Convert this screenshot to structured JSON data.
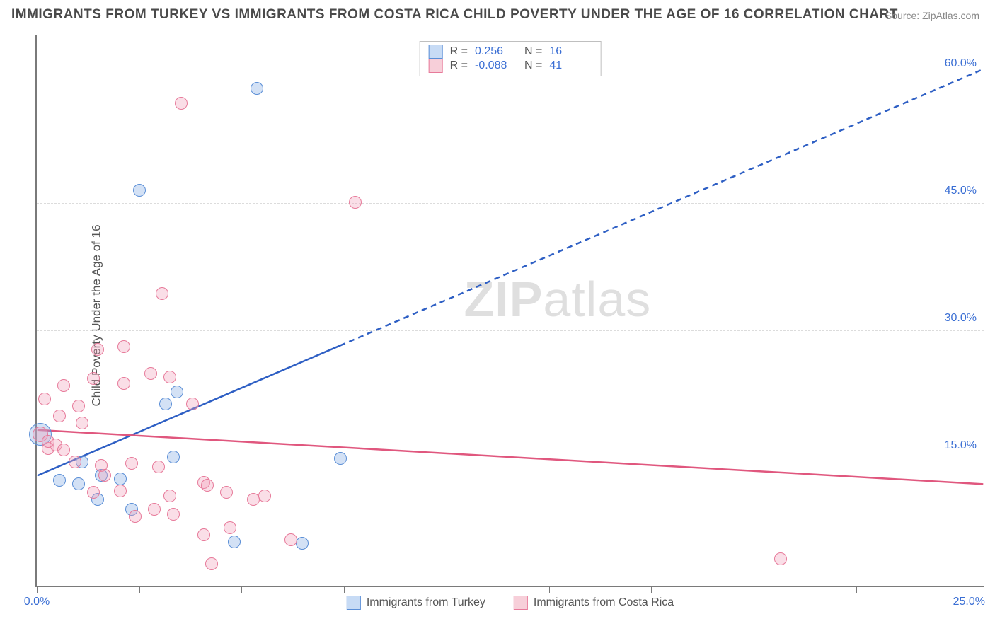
{
  "title": "IMMIGRANTS FROM TURKEY VS IMMIGRANTS FROM COSTA RICA CHILD POVERTY UNDER THE AGE OF 16 CORRELATION CHART",
  "source": "Source: ZipAtlas.com",
  "watermark_a": "ZIP",
  "watermark_b": "atlas",
  "chart": {
    "type": "scatter",
    "background_color": "#ffffff",
    "grid_color": "#dcdcdc",
    "axis_color": "#7a7a7a",
    "label_color": "#3b6fd4",
    "y_label": "Child Poverty Under the Age of 16",
    "y_label_fontsize": 17,
    "tick_fontsize": 16,
    "title_fontsize": 19,
    "xlim": [
      0,
      25
    ],
    "ylim": [
      0,
      65
    ],
    "x_ticks": [
      0,
      2.7,
      5.4,
      8.1,
      10.8,
      13.5,
      16.2,
      18.9,
      21.6
    ],
    "x_tick_labels": {
      "0": "0.0%",
      "25": "25.0%"
    },
    "y_ticks": [
      15,
      30,
      45,
      60
    ],
    "y_tick_labels": [
      "15.0%",
      "30.0%",
      "45.0%",
      "60.0%"
    ],
    "marker_radius_min": 8,
    "marker_radius_max": 16,
    "series": [
      {
        "name": "Immigrants from Turkey",
        "color_fill": "#c7dbf5",
        "color_stroke": "#5a8ed6",
        "r_value": "0.256",
        "n_value": "16",
        "trend": {
          "x1": 0,
          "y1": 13.0,
          "x2": 25,
          "y2": 61.0,
          "solid_until_x": 8.0,
          "color": "#2e5fc4",
          "width": 2.5
        },
        "points": [
          {
            "x": 0.1,
            "y": 17.8,
            "r": 16
          },
          {
            "x": 0.6,
            "y": 12.4,
            "r": 9
          },
          {
            "x": 1.1,
            "y": 12.0,
            "r": 9
          },
          {
            "x": 1.2,
            "y": 14.6,
            "r": 9
          },
          {
            "x": 1.6,
            "y": 10.2,
            "r": 9
          },
          {
            "x": 1.7,
            "y": 13.0,
            "r": 9
          },
          {
            "x": 2.2,
            "y": 12.6,
            "r": 9
          },
          {
            "x": 2.5,
            "y": 9.0,
            "r": 9
          },
          {
            "x": 2.7,
            "y": 46.6,
            "r": 9
          },
          {
            "x": 3.4,
            "y": 21.4,
            "r": 9
          },
          {
            "x": 3.6,
            "y": 15.2,
            "r": 9
          },
          {
            "x": 3.7,
            "y": 22.8,
            "r": 9
          },
          {
            "x": 5.2,
            "y": 5.2,
            "r": 9
          },
          {
            "x": 5.8,
            "y": 58.6,
            "r": 9
          },
          {
            "x": 7.0,
            "y": 5.0,
            "r": 9
          },
          {
            "x": 8.0,
            "y": 15.0,
            "r": 9
          }
        ]
      },
      {
        "name": "Immigrants from Costa Rica",
        "color_fill": "#f7cfd9",
        "color_stroke": "#e77a9a",
        "r_value": "-0.088",
        "n_value": "41",
        "trend": {
          "x1": 0,
          "y1": 18.4,
          "x2": 25,
          "y2": 12.0,
          "solid_until_x": 25,
          "color": "#e0577e",
          "width": 2.5
        },
        "points": [
          {
            "x": 0.1,
            "y": 17.8,
            "r": 11
          },
          {
            "x": 0.2,
            "y": 22.0,
            "r": 9
          },
          {
            "x": 0.3,
            "y": 16.2,
            "r": 9
          },
          {
            "x": 0.3,
            "y": 17.0,
            "r": 9
          },
          {
            "x": 0.5,
            "y": 16.6,
            "r": 9
          },
          {
            "x": 0.6,
            "y": 20.0,
            "r": 9
          },
          {
            "x": 0.7,
            "y": 16.0,
            "r": 9
          },
          {
            "x": 0.7,
            "y": 23.6,
            "r": 9
          },
          {
            "x": 1.0,
            "y": 14.6,
            "r": 9
          },
          {
            "x": 1.1,
            "y": 21.2,
            "r": 9
          },
          {
            "x": 1.2,
            "y": 19.2,
            "r": 9
          },
          {
            "x": 1.5,
            "y": 24.4,
            "r": 9
          },
          {
            "x": 1.5,
            "y": 11.0,
            "r": 9
          },
          {
            "x": 1.6,
            "y": 27.8,
            "r": 9
          },
          {
            "x": 1.7,
            "y": 14.2,
            "r": 9
          },
          {
            "x": 1.8,
            "y": 13.0,
            "r": 9
          },
          {
            "x": 2.2,
            "y": 11.2,
            "r": 9
          },
          {
            "x": 2.3,
            "y": 28.2,
            "r": 9
          },
          {
            "x": 2.3,
            "y": 23.8,
            "r": 9
          },
          {
            "x": 2.5,
            "y": 14.4,
            "r": 9
          },
          {
            "x": 2.6,
            "y": 8.2,
            "r": 9
          },
          {
            "x": 3.0,
            "y": 25.0,
            "r": 9
          },
          {
            "x": 3.1,
            "y": 9.0,
            "r": 9
          },
          {
            "x": 3.2,
            "y": 14.0,
            "r": 9
          },
          {
            "x": 3.3,
            "y": 34.4,
            "r": 9
          },
          {
            "x": 3.5,
            "y": 10.6,
            "r": 9
          },
          {
            "x": 3.5,
            "y": 24.6,
            "r": 9
          },
          {
            "x": 3.6,
            "y": 8.4,
            "r": 9
          },
          {
            "x": 3.8,
            "y": 56.8,
            "r": 9
          },
          {
            "x": 4.4,
            "y": 6.0,
            "r": 9
          },
          {
            "x": 4.4,
            "y": 12.2,
            "r": 9
          },
          {
            "x": 4.5,
            "y": 11.8,
            "r": 9
          },
          {
            "x": 4.6,
            "y": 2.6,
            "r": 9
          },
          {
            "x": 5.0,
            "y": 11.0,
            "r": 9
          },
          {
            "x": 5.1,
            "y": 6.8,
            "r": 9
          },
          {
            "x": 5.7,
            "y": 10.2,
            "r": 9
          },
          {
            "x": 6.0,
            "y": 10.6,
            "r": 9
          },
          {
            "x": 6.7,
            "y": 5.4,
            "r": 9
          },
          {
            "x": 8.4,
            "y": 45.2,
            "r": 9
          },
          {
            "x": 19.6,
            "y": 3.2,
            "r": 9
          },
          {
            "x": 4.1,
            "y": 21.4,
            "r": 9
          }
        ]
      }
    ]
  },
  "legend_top": {
    "r_label": "R =",
    "n_label": "N ="
  }
}
